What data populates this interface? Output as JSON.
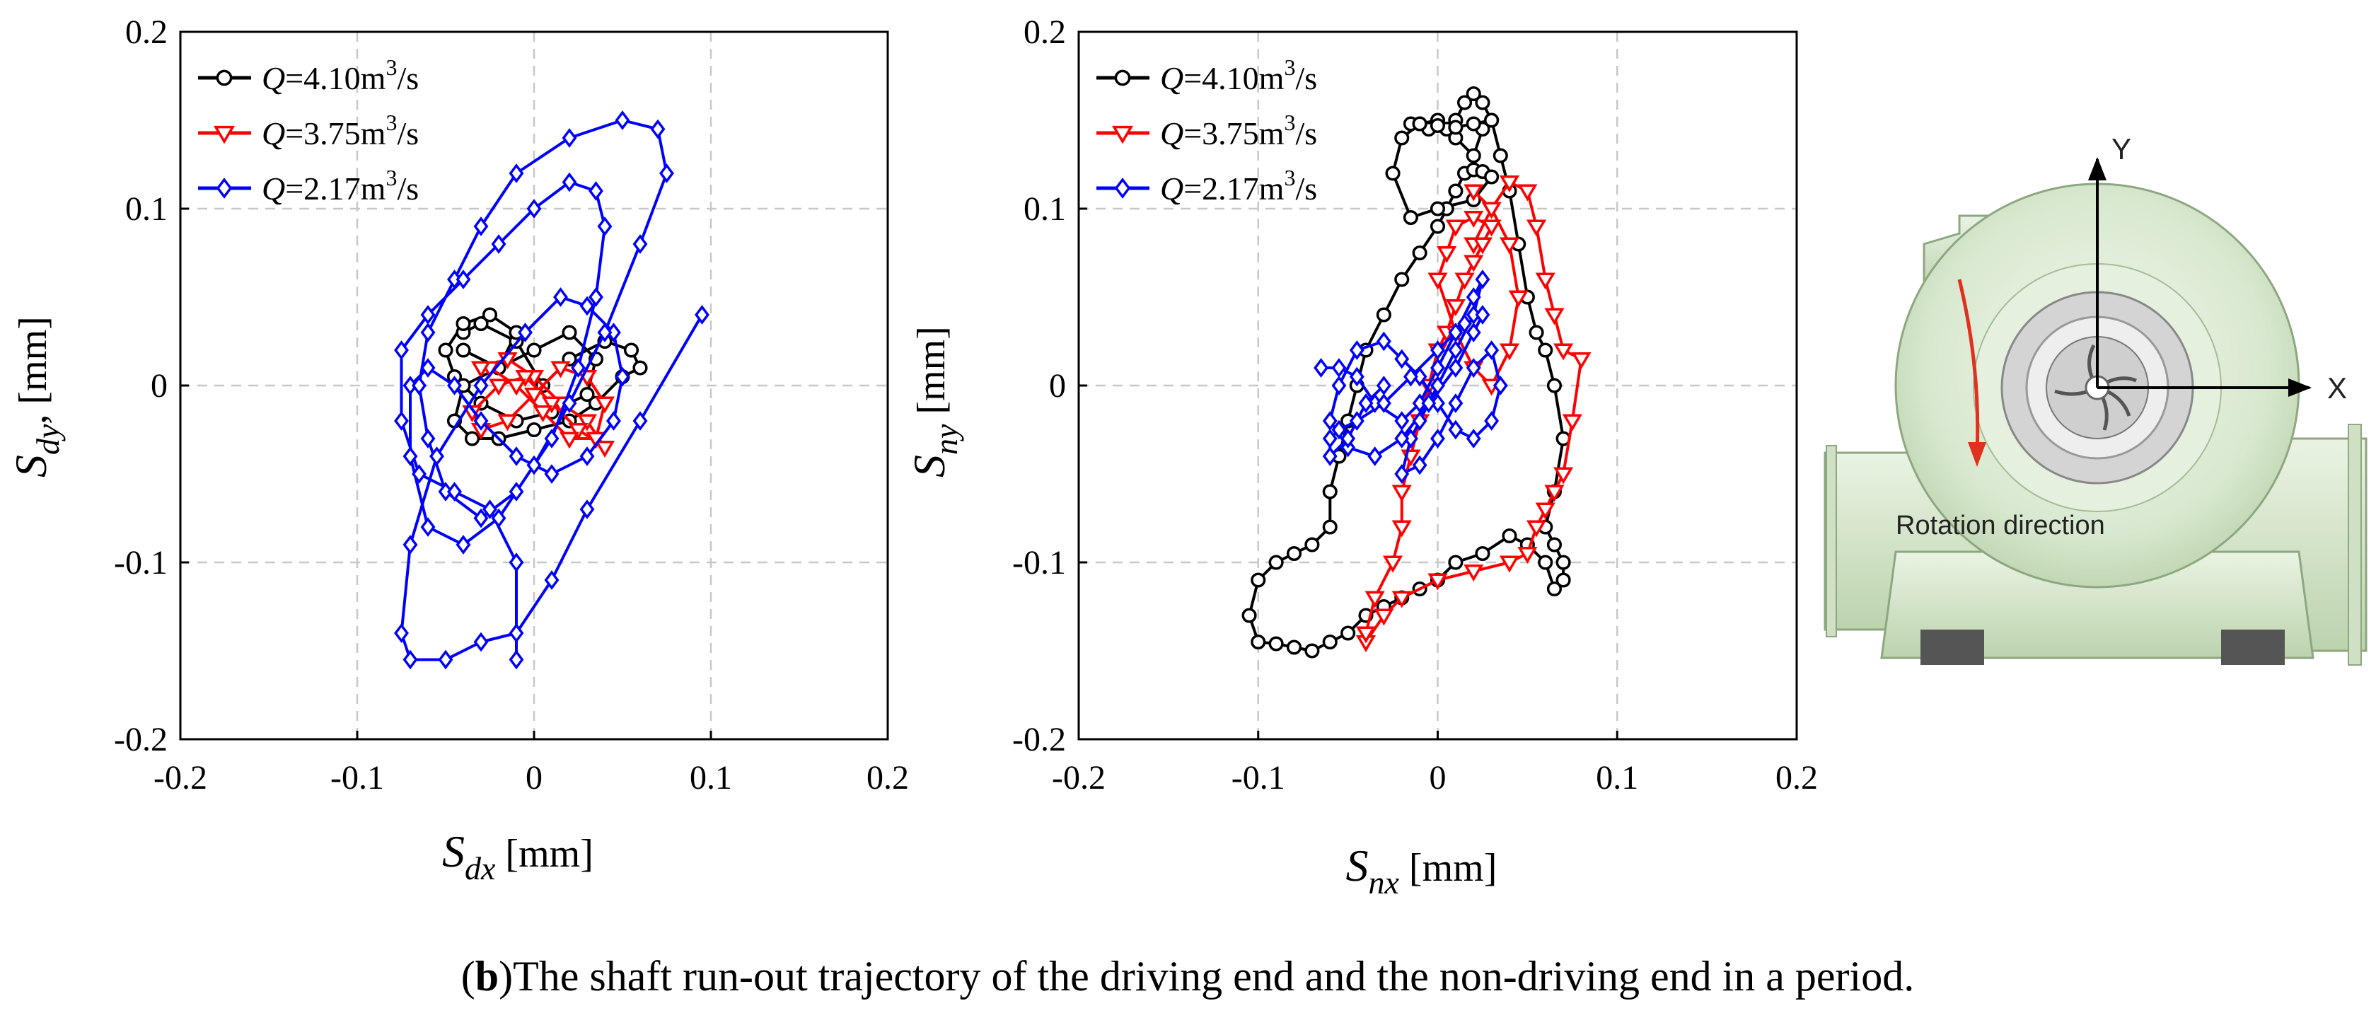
{
  "caption": {
    "label": "b",
    "text": "The shaft run-out trajectory of the driving end and the non-driving end in a period."
  },
  "legend": {
    "entries": [
      {
        "q": "Q",
        "value": "=4.10m",
        "sup": "3",
        "unit": "/s",
        "color": "#000000",
        "marker": "circle"
      },
      {
        "q": "Q",
        "value": "=3.75m",
        "sup": "3",
        "unit": "/s",
        "color": "#ff0000",
        "marker": "triangle-down"
      },
      {
        "q": "Q",
        "value": "=2.17m",
        "sup": "3",
        "unit": "/s",
        "color": "#0000ff",
        "marker": "diamond"
      }
    ]
  },
  "pump_diagram": {
    "axis_y": "Y",
    "axis_x": "X",
    "rotation_label": "Rotation direction"
  },
  "chart_data": [
    {
      "type": "line",
      "xlabel_base": "S",
      "xlabel_sub": "dx",
      "xlabel_unit": " [mm]",
      "ylabel_base": "S",
      "ylabel_sub": "dy",
      "ylabel_unit": ", [mm]",
      "xlim": [
        -0.2,
        0.2
      ],
      "ylim": [
        -0.2,
        0.2
      ],
      "xticks": [
        "-0.2",
        "-0.1",
        "0",
        "0.1",
        "0.2"
      ],
      "yticks": [
        "-0.2",
        "-0.1",
        "0",
        "0.1",
        "0.2"
      ],
      "grid": true,
      "legend_position": "top-left",
      "series": [
        {
          "name": "Q=4.10m3/s",
          "color": "#000000",
          "marker": "circle",
          "x": [
            -0.04,
            -0.03,
            -0.01,
            0.005,
            0.02,
            0.04,
            0.055,
            0.06,
            0.05,
            0.035,
            0.02,
            0.0,
            -0.02,
            -0.035,
            -0.045,
            -0.04,
            -0.02,
            0.0,
            0.02,
            0.035,
            0.03,
            0.01,
            -0.01,
            -0.03,
            -0.045,
            -0.05,
            -0.04,
            -0.025,
            -0.01,
            -0.02,
            -0.04
          ],
          "y": [
            0.03,
            0.035,
            0.025,
            0.0,
            0.015,
            0.025,
            0.02,
            0.01,
            0.005,
            -0.01,
            -0.02,
            -0.025,
            -0.03,
            -0.03,
            -0.02,
            0.0,
            0.01,
            0.02,
            0.03,
            0.015,
            -0.005,
            -0.015,
            -0.02,
            -0.01,
            0.005,
            0.02,
            0.035,
            0.04,
            0.03,
            0.01,
            0.02
          ]
        },
        {
          "name": "Q=3.75m3/s",
          "color": "#ff0000",
          "marker": "triangle-down",
          "x": [
            -0.03,
            -0.015,
            0.0,
            0.015,
            0.03,
            0.04,
            0.025,
            0.01,
            -0.005,
            -0.02,
            -0.035,
            -0.03,
            -0.015,
            0.0,
            0.015,
            0.03,
            0.04,
            0.035,
            0.02,
            0.005,
            -0.01,
            -0.025,
            -0.03
          ],
          "y": [
            0.01,
            0.015,
            0.005,
            -0.01,
            -0.02,
            -0.035,
            -0.025,
            -0.01,
            0.005,
            0.0,
            -0.015,
            -0.025,
            -0.02,
            -0.005,
            0.01,
            0.005,
            -0.01,
            -0.03,
            -0.03,
            -0.015,
            0.0,
            0.01,
            0.01
          ]
        },
        {
          "name": "Q=2.17m3/s",
          "color": "#0000ff",
          "marker": "diamond",
          "x": [
            0.095,
            0.06,
            0.03,
            0.01,
            -0.01,
            -0.03,
            -0.05,
            -0.07,
            -0.075,
            -0.07,
            -0.055,
            -0.03,
            -0.005,
            0.015,
            0.03,
            0.045,
            0.05,
            0.045,
            0.03,
            0.01,
            -0.01,
            -0.03,
            -0.045,
            -0.06,
            -0.07,
            -0.07,
            -0.06,
            -0.04,
            -0.02,
            0.0,
            0.02,
            0.04,
            0.06,
            0.075,
            0.07,
            0.05,
            0.02,
            -0.01,
            -0.03,
            -0.045,
            -0.06,
            -0.065,
            -0.06,
            -0.05,
            -0.03,
            -0.01,
            0.01,
            0.025,
            0.035,
            0.04,
            0.035,
            0.02,
            0.0,
            -0.02,
            -0.04,
            -0.06,
            -0.075,
            -0.075,
            -0.065,
            -0.045,
            -0.025,
            -0.01,
            -0.01
          ],
          "y": [
            0.04,
            -0.02,
            -0.07,
            -0.11,
            -0.14,
            -0.145,
            -0.155,
            -0.155,
            -0.14,
            -0.09,
            -0.04,
            0.0,
            0.03,
            0.05,
            0.045,
            0.03,
            0.005,
            -0.02,
            -0.04,
            -0.05,
            -0.04,
            -0.02,
            0.0,
            0.01,
            0.0,
            -0.04,
            -0.08,
            -0.09,
            -0.075,
            -0.045,
            -0.01,
            0.03,
            0.08,
            0.12,
            0.145,
            0.15,
            0.14,
            0.12,
            0.09,
            0.06,
            0.03,
            0.0,
            -0.03,
            -0.06,
            -0.075,
            -0.06,
            -0.03,
            0.01,
            0.05,
            0.09,
            0.11,
            0.115,
            0.1,
            0.08,
            0.06,
            0.04,
            0.02,
            -0.02,
            -0.05,
            -0.06,
            -0.07,
            -0.1,
            -0.155
          ]
        }
      ]
    },
    {
      "type": "line",
      "xlabel_base": "S",
      "xlabel_sub": "nx",
      "xlabel_unit": " [mm]",
      "ylabel_base": "S",
      "ylabel_sub": "ny",
      "ylabel_unit": " [mm]",
      "xlim": [
        -0.2,
        0.2
      ],
      "ylim": [
        -0.2,
        0.2
      ],
      "xticks": [
        "-0.2",
        "-0.1",
        "0",
        "0.1",
        "0.2"
      ],
      "yticks": [
        "-0.2",
        "-0.1",
        "0",
        "0.1",
        "0.2"
      ],
      "grid": true,
      "legend_position": "top-left",
      "series": [
        {
          "name": "Q=4.10m3/s",
          "color": "#000000",
          "marker": "circle",
          "x": [
            -0.015,
            -0.005,
            0.005,
            0.01,
            0.015,
            0.02,
            0.025,
            0.03,
            0.035,
            0.04,
            0.045,
            0.05,
            0.055,
            0.06,
            0.065,
            0.07,
            0.065,
            0.06,
            0.065,
            0.07,
            0.07,
            0.065,
            0.06,
            0.05,
            0.04,
            0.025,
            0.01,
            0.0,
            -0.01,
            -0.02,
            -0.03,
            -0.04,
            -0.05,
            -0.06,
            -0.07,
            -0.08,
            -0.09,
            -0.1,
            -0.105,
            -0.1,
            -0.09,
            -0.08,
            -0.07,
            -0.06,
            -0.06,
            -0.055,
            -0.05,
            -0.045,
            -0.04,
            -0.03,
            -0.02,
            -0.01,
            0.0,
            0.005,
            0.01,
            0.015,
            0.02,
            0.025,
            0.03,
            0.02,
            0.0,
            -0.015,
            -0.025,
            -0.02,
            -0.01,
            0.0,
            0.01,
            0.02,
            0.025,
            0.03,
            0.02,
            0.01,
            0.0,
            -0.01
          ],
          "y": [
            0.148,
            0.145,
            0.145,
            0.15,
            0.16,
            0.165,
            0.16,
            0.15,
            0.13,
            0.11,
            0.08,
            0.05,
            0.03,
            0.02,
            0.0,
            -0.03,
            -0.06,
            -0.08,
            -0.09,
            -0.1,
            -0.11,
            -0.115,
            -0.1,
            -0.09,
            -0.085,
            -0.095,
            -0.1,
            -0.11,
            -0.115,
            -0.12,
            -0.125,
            -0.13,
            -0.14,
            -0.145,
            -0.15,
            -0.148,
            -0.146,
            -0.145,
            -0.13,
            -0.11,
            -0.1,
            -0.095,
            -0.09,
            -0.08,
            -0.06,
            -0.04,
            -0.02,
            0.0,
            0.02,
            0.04,
            0.06,
            0.075,
            0.09,
            0.1,
            0.11,
            0.12,
            0.122,
            0.121,
            0.118,
            0.105,
            0.1,
            0.095,
            0.12,
            0.14,
            0.148,
            0.15,
            0.14,
            0.13,
            0.145,
            0.15,
            0.148,
            0.146,
            0.147,
            0.148
          ]
        },
        {
          "name": "Q=3.75m3/s",
          "color": "#ff0000",
          "marker": "triangle-down",
          "x": [
            0.02,
            0.03,
            0.04,
            0.05,
            0.055,
            0.06,
            0.065,
            0.07,
            0.08,
            0.075,
            0.07,
            0.065,
            0.06,
            0.055,
            0.05,
            0.04,
            0.02,
            0.0,
            -0.02,
            -0.03,
            -0.04,
            -0.04,
            -0.035,
            -0.025,
            -0.02,
            -0.02,
            -0.015,
            -0.01,
            -0.005,
            0.0,
            0.005,
            0.01,
            0.015,
            0.02,
            0.025,
            0.03,
            0.02,
            0.01,
            0.005,
            0.0,
            0.01,
            0.02,
            0.03,
            0.04,
            0.045,
            0.04,
            0.03,
            0.02
          ],
          "y": [
            0.08,
            0.1,
            0.115,
            0.11,
            0.09,
            0.06,
            0.04,
            0.02,
            0.015,
            -0.02,
            -0.05,
            -0.06,
            -0.07,
            -0.08,
            -0.095,
            -0.1,
            -0.105,
            -0.11,
            -0.12,
            -0.13,
            -0.145,
            -0.14,
            -0.12,
            -0.1,
            -0.08,
            -0.06,
            -0.04,
            -0.02,
            0.0,
            0.02,
            0.03,
            0.045,
            0.06,
            0.07,
            0.08,
            0.09,
            0.095,
            0.09,
            0.075,
            0.06,
            0.03,
            0.01,
            0.0,
            0.02,
            0.05,
            0.08,
            0.1,
            0.11
          ]
        },
        {
          "name": "Q=2.17m3/s",
          "color": "#0000ff",
          "marker": "diamond",
          "x": [
            -0.065,
            -0.055,
            -0.045,
            -0.035,
            -0.02,
            -0.01,
            0.0,
            0.01,
            0.02,
            0.025,
            0.02,
            0.01,
            0.0,
            -0.01,
            -0.015,
            -0.02,
            -0.01,
            0.0,
            0.01,
            0.02,
            0.03,
            0.035,
            0.03,
            0.02,
            0.01,
            0.0,
            -0.01,
            -0.02,
            -0.03,
            -0.045,
            -0.055,
            -0.06,
            -0.05,
            -0.035,
            -0.02,
            -0.005,
            0.01,
            0.02,
            0.025,
            0.015,
            0.0,
            -0.015,
            -0.03,
            -0.045,
            -0.055,
            -0.06,
            -0.06,
            -0.05,
            -0.04,
            -0.03
          ],
          "y": [
            0.01,
            0.01,
            0.005,
            -0.01,
            -0.02,
            -0.01,
            0.01,
            0.03,
            0.05,
            0.06,
            0.04,
            0.02,
            0.0,
            -0.02,
            -0.03,
            -0.05,
            -0.045,
            -0.03,
            -0.01,
            0.01,
            0.02,
            0.0,
            -0.02,
            -0.03,
            -0.025,
            -0.01,
            0.005,
            0.015,
            0.025,
            0.02,
            0.0,
            -0.02,
            -0.035,
            -0.04,
            -0.03,
            -0.01,
            0.01,
            0.03,
            0.04,
            0.035,
            0.02,
            0.005,
            -0.01,
            -0.02,
            -0.025,
            -0.03,
            -0.04,
            -0.03,
            -0.01,
            0.0
          ]
        }
      ]
    }
  ]
}
